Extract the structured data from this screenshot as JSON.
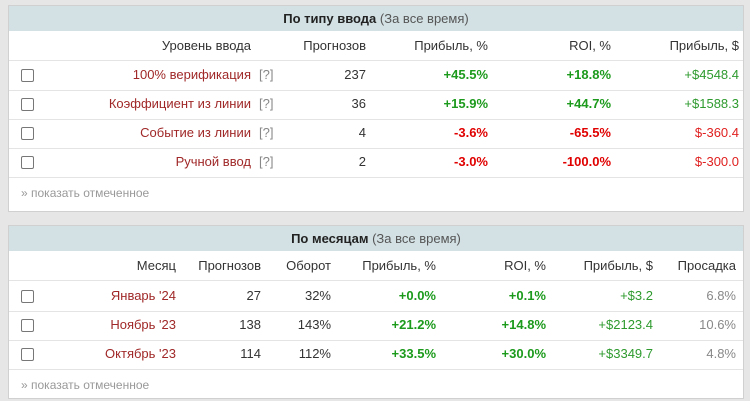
{
  "panels": [
    {
      "title": "По типу ввода",
      "subtitle": "(За все время)",
      "columns": [
        "Уровень ввода",
        "Прогнозов",
        "Прибыль, %",
        "ROI, %",
        "Прибыль, $"
      ],
      "rows": [
        {
          "label": "100% верификация",
          "help": "[?]",
          "cells": [
            "237",
            "+45.5%",
            "+18.8%",
            "+$4548.4"
          ]
        },
        {
          "label": "Коэффициент из линии",
          "help": "[?]",
          "cells": [
            "36",
            "+15.9%",
            "+44.7%",
            "+$1588.3"
          ]
        },
        {
          "label": "Событие из линии",
          "help": "[?]",
          "cells": [
            "4",
            "-3.6%",
            "-65.5%",
            "$-360.4"
          ]
        },
        {
          "label": "Ручной ввод",
          "help": "[?]",
          "cells": [
            "2",
            "-3.0%",
            "-100.0%",
            "$-300.0"
          ]
        }
      ],
      "footer": "» показать отмеченное"
    },
    {
      "title": "По месяцам",
      "subtitle": "(За все время)",
      "columns": [
        "Месяц",
        "Прогнозов",
        "Оборот",
        "Прибыль, %",
        "ROI, %",
        "Прибыль, $",
        "Просадка"
      ],
      "rows": [
        {
          "label": "Январь '24",
          "cells": [
            "27",
            "32%",
            "+0.0%",
            "+0.1%",
            "+$3.2",
            "6.8%"
          ]
        },
        {
          "label": "Ноябрь '23",
          "cells": [
            "138",
            "143%",
            "+21.2%",
            "+14.8%",
            "+$2123.4",
            "10.6%"
          ]
        },
        {
          "label": "Октябрь '23",
          "cells": [
            "114",
            "112%",
            "+33.5%",
            "+30.0%",
            "+$3349.7",
            "4.8%"
          ]
        }
      ],
      "footer": "» показать отмеченное"
    }
  ]
}
